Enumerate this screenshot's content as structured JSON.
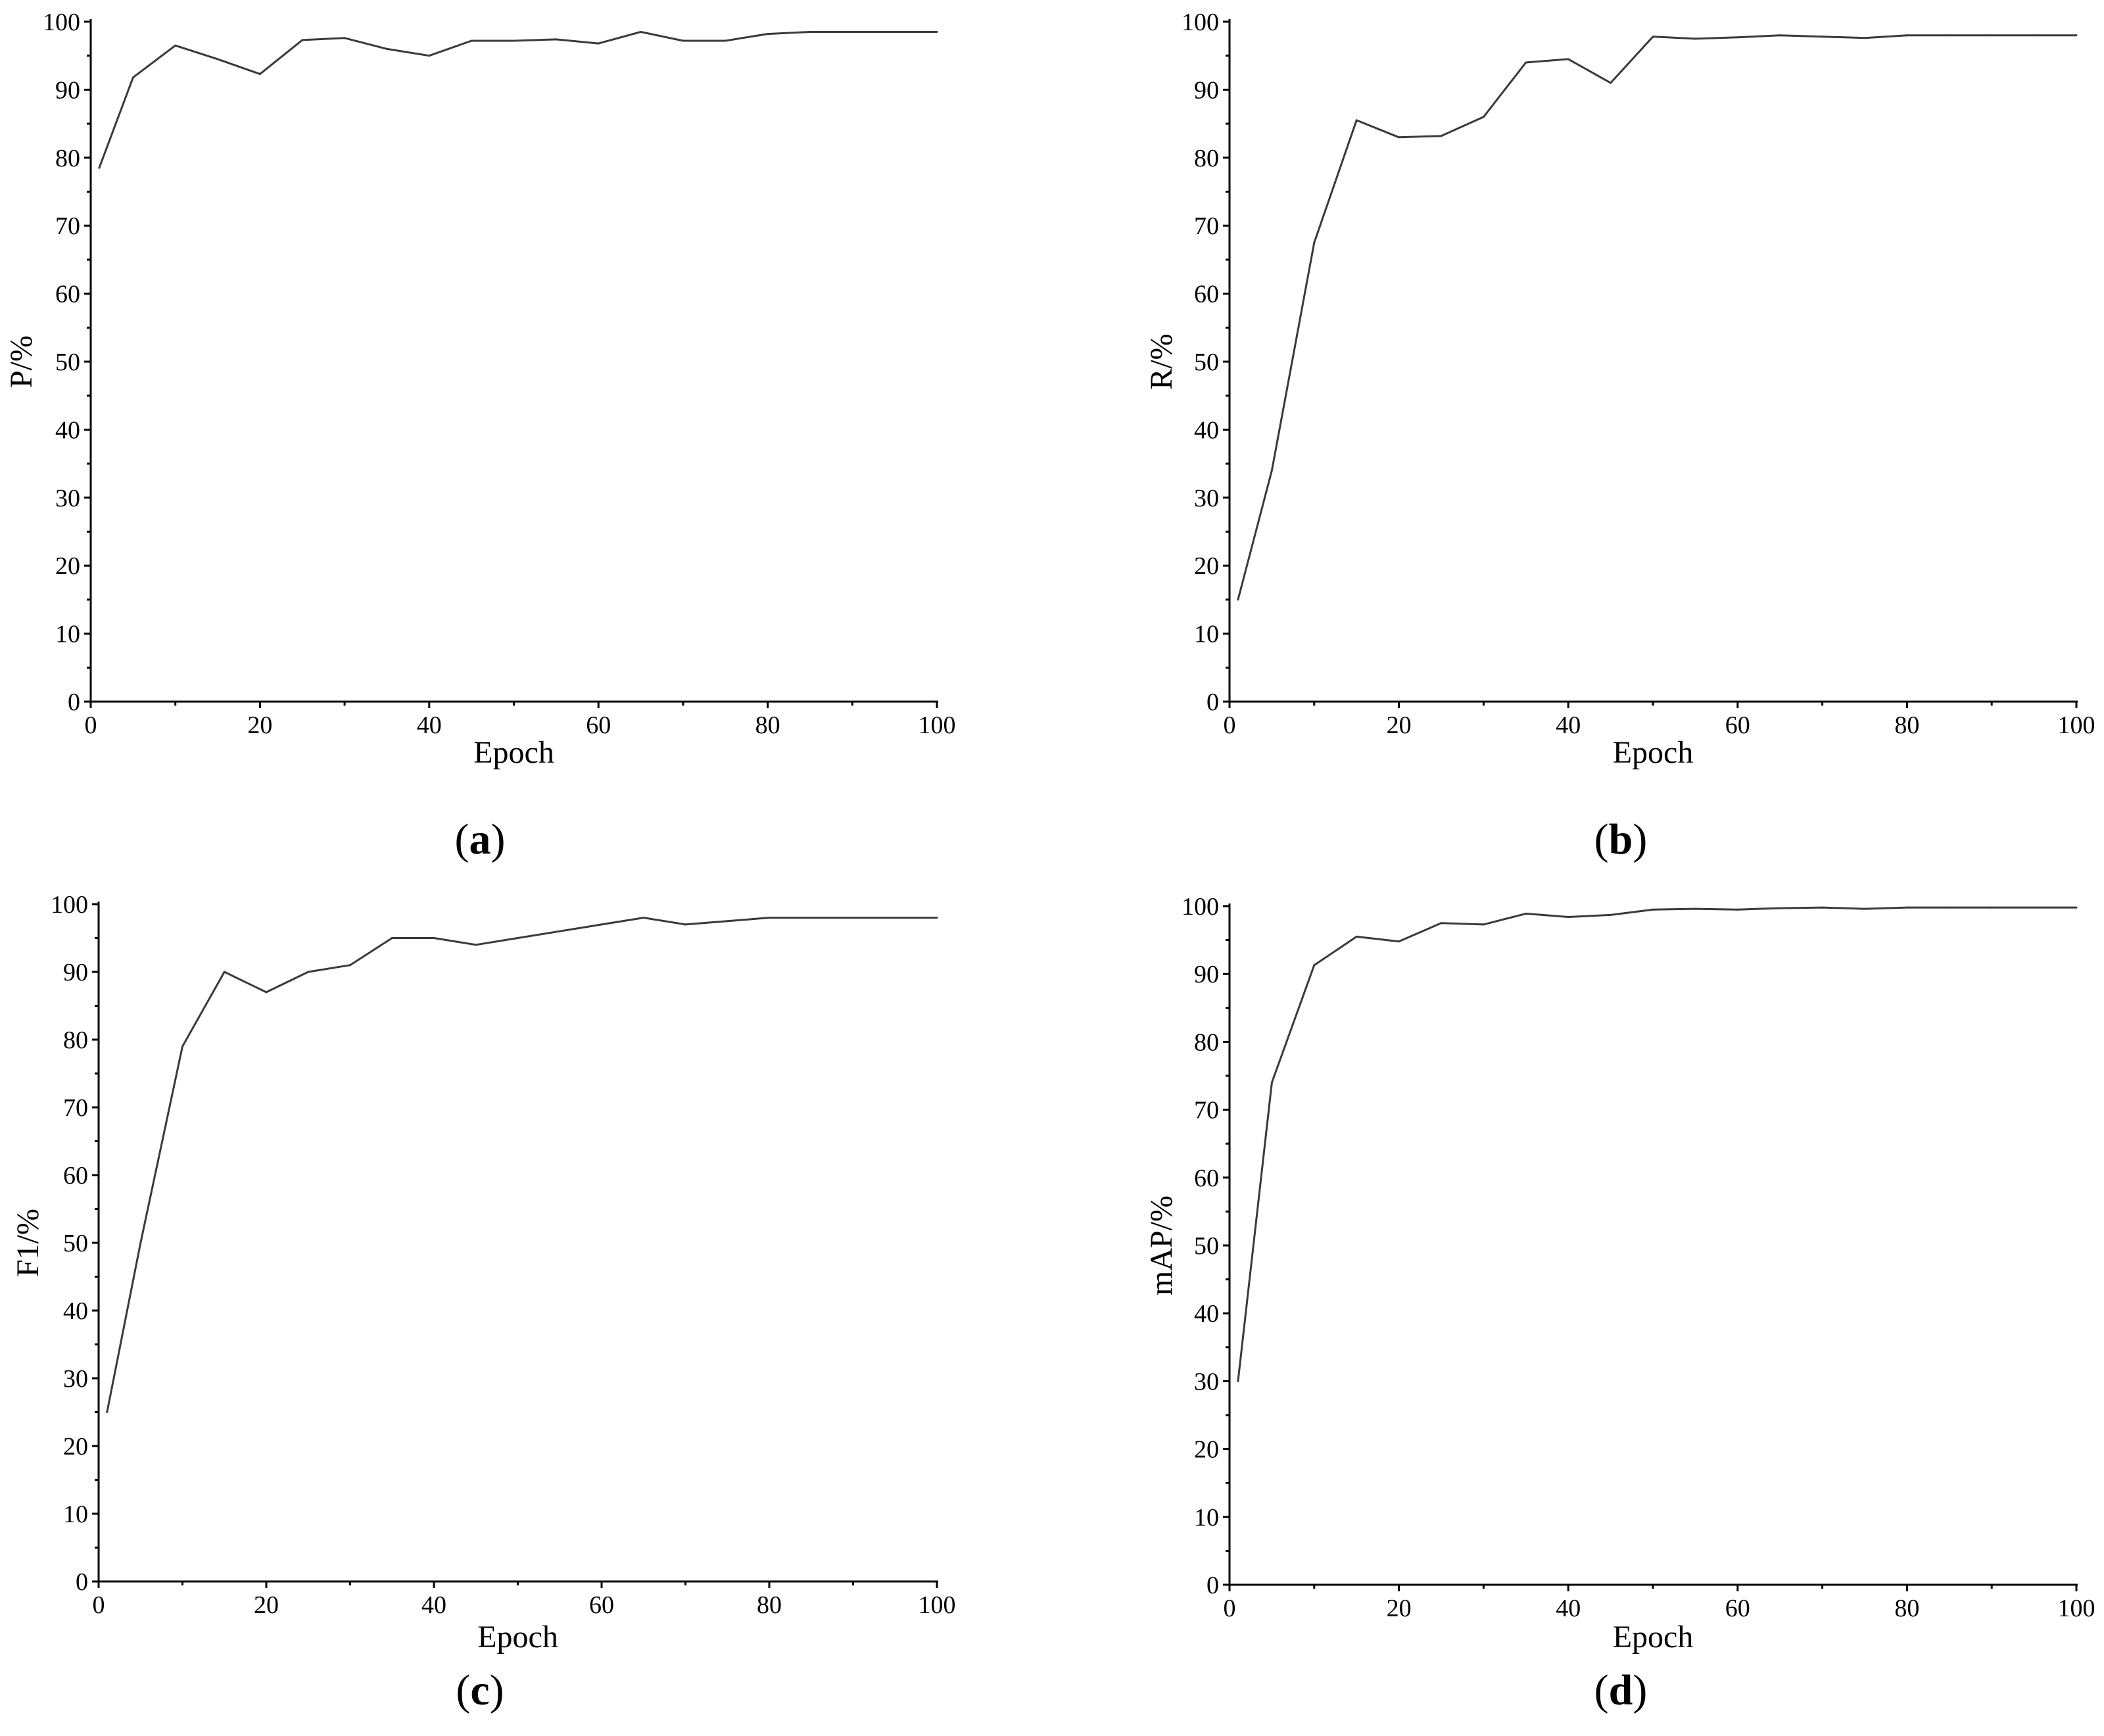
{
  "figure": {
    "panels": [
      {
        "id": "a",
        "caption_open": "(",
        "caption_letter": "a",
        "caption_close": ")"
      },
      {
        "id": "b",
        "caption_open": "(",
        "caption_letter": "b",
        "caption_close": ")"
      },
      {
        "id": "c",
        "caption_open": "(",
        "caption_letter": "c",
        "caption_close": ")"
      },
      {
        "id": "d",
        "caption_open": "(",
        "caption_letter": "d",
        "caption_close": ")"
      }
    ]
  },
  "chart_data": [
    {
      "type": "line",
      "panel": "a",
      "xlabel": "Epoch",
      "ylabel": "P/%",
      "xlim": [
        0,
        100
      ],
      "ylim": [
        0,
        100
      ],
      "xticks": [
        "0",
        "20",
        "40",
        "60",
        "80",
        "100"
      ],
      "yticks": [
        "0",
        "10",
        "20",
        "30",
        "40",
        "50",
        "60",
        "70",
        "80",
        "90",
        "100"
      ],
      "grid": false,
      "color": "#3a3a3a",
      "series": [
        {
          "x": [
            1,
            5,
            10,
            15,
            20,
            25,
            30,
            35,
            40,
            45,
            50,
            55,
            60,
            65,
            70,
            75,
            80,
            85,
            90,
            95,
            100
          ],
          "y": [
            78.5,
            91.8,
            96.5,
            94.5,
            92.3,
            97.3,
            97.6,
            96.0,
            95.0,
            97.2,
            97.2,
            97.4,
            96.8,
            98.5,
            97.2,
            97.2,
            98.2,
            98.5,
            98.5,
            98.5,
            98.5
          ]
        }
      ]
    },
    {
      "type": "line",
      "panel": "b",
      "xlabel": "Epoch",
      "ylabel": "R/%",
      "xlim": [
        0,
        100
      ],
      "ylim": [
        0,
        100
      ],
      "xticks": [
        "0",
        "20",
        "40",
        "60",
        "80",
        "100"
      ],
      "yticks": [
        "0",
        "10",
        "20",
        "30",
        "40",
        "50",
        "60",
        "70",
        "80",
        "90",
        "100"
      ],
      "grid": false,
      "color": "#3a3a3a",
      "series": [
        {
          "x": [
            1,
            5,
            10,
            15,
            20,
            25,
            30,
            35,
            40,
            45,
            50,
            55,
            60,
            65,
            70,
            75,
            80,
            85,
            90,
            95,
            100
          ],
          "y": [
            15.0,
            34.0,
            67.5,
            85.5,
            83.0,
            83.2,
            86.0,
            94.0,
            94.5,
            91.0,
            97.8,
            97.5,
            97.7,
            98.0,
            97.8,
            97.6,
            98.0,
            98.0,
            98.0,
            98.0,
            98.0
          ]
        }
      ]
    },
    {
      "type": "line",
      "panel": "c",
      "xlabel": "Epoch",
      "ylabel": "F1/%",
      "xlim": [
        0,
        100
      ],
      "ylim": [
        0,
        100
      ],
      "xticks": [
        "0",
        "20",
        "40",
        "60",
        "80",
        "100"
      ],
      "yticks": [
        "0",
        "10",
        "20",
        "30",
        "40",
        "50",
        "60",
        "70",
        "80",
        "90",
        "100"
      ],
      "grid": false,
      "color": "#3a3a3a",
      "series": [
        {
          "x": [
            1,
            5,
            10,
            15,
            20,
            25,
            30,
            35,
            40,
            45,
            50,
            55,
            60,
            65,
            70,
            75,
            80,
            85,
            90,
            95,
            100
          ],
          "y": [
            25.0,
            50.0,
            79.0,
            90.0,
            87.0,
            90.0,
            91.0,
            95.0,
            95.0,
            94.0,
            95.0,
            96.0,
            97.0,
            98.0,
            97.0,
            97.5,
            98.0,
            98.0,
            98.0,
            98.0,
            98.0
          ]
        }
      ]
    },
    {
      "type": "line",
      "panel": "d",
      "xlabel": "Epoch",
      "ylabel": "mAP/%",
      "xlim": [
        0,
        100
      ],
      "ylim": [
        0,
        100
      ],
      "xticks": [
        "0",
        "20",
        "40",
        "60",
        "80",
        "100"
      ],
      "yticks": [
        "0",
        "10",
        "20",
        "30",
        "40",
        "50",
        "60",
        "70",
        "80",
        "90",
        "100"
      ],
      "grid": false,
      "color": "#3a3a3a",
      "series": [
        {
          "x": [
            1,
            5,
            10,
            15,
            20,
            25,
            30,
            35,
            40,
            45,
            50,
            55,
            60,
            65,
            70,
            75,
            80,
            85,
            90,
            95,
            100
          ],
          "y": [
            30.0,
            74.0,
            91.3,
            95.5,
            94.8,
            97.5,
            97.3,
            98.9,
            98.4,
            98.7,
            99.5,
            99.6,
            99.5,
            99.7,
            99.8,
            99.6,
            99.8,
            99.8,
            99.8,
            99.8,
            99.8
          ]
        }
      ]
    }
  ]
}
